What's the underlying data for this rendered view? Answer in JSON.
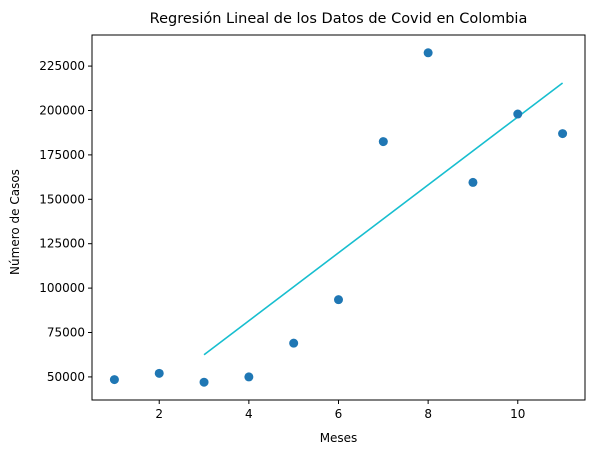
{
  "chart_data": {
    "type": "scatter",
    "title": "Regresión Lineal de los Datos de Covid en Colombia",
    "xlabel": "Meses",
    "ylabel": "Número de Casos",
    "xlim": [
      0.5,
      11.5
    ],
    "ylim": [
      37000,
      242500
    ],
    "xticks": [
      2,
      4,
      6,
      8,
      10
    ],
    "yticks": [
      50000,
      75000,
      100000,
      125000,
      150000,
      175000,
      200000,
      225000
    ],
    "grid": false,
    "legend": "none",
    "colors": {
      "points": "#1f77b4",
      "regression_line": "#17becf"
    },
    "points": [
      {
        "x": 1,
        "y": 48500
      },
      {
        "x": 2,
        "y": 52000
      },
      {
        "x": 3,
        "y": 47000
      },
      {
        "x": 4,
        "y": 50000
      },
      {
        "x": 5,
        "y": 69000
      },
      {
        "x": 6,
        "y": 93500
      },
      {
        "x": 7,
        "y": 182500
      },
      {
        "x": 8,
        "y": 232500
      },
      {
        "x": 9,
        "y": 159500
      },
      {
        "x": 10,
        "y": 198000
      },
      {
        "x": 11,
        "y": 187000
      }
    ],
    "regression_line": [
      {
        "x": 3,
        "y": 62500
      },
      {
        "x": 11,
        "y": 215500
      }
    ]
  }
}
